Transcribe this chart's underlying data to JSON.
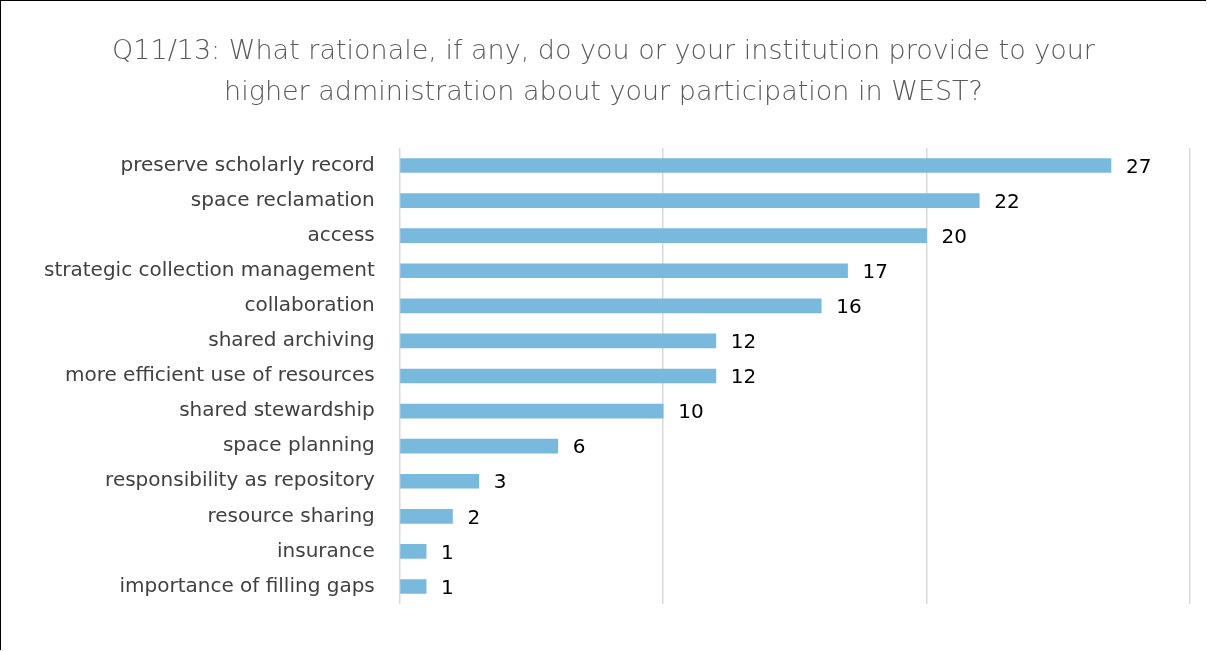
{
  "chart_data": {
    "type": "bar",
    "orientation": "horizontal",
    "title": "Q11/13: What rationale, if any, do you or your institution provide to your higher administration about your participation in WEST?",
    "categories": [
      "preserve scholarly record",
      "space reclamation",
      "access",
      "strategic collection management",
      "collaboration",
      "shared archiving",
      "more efficient use of resources",
      "shared stewardship",
      "space planning",
      "responsibility as repository",
      "resource sharing",
      "insurance",
      "importance of filling gaps"
    ],
    "values": [
      27,
      22,
      20,
      17,
      16,
      12,
      12,
      10,
      6,
      3,
      2,
      1,
      1
    ],
    "color": "#7ab9de",
    "xlim": [
      0,
      30
    ],
    "xticks": [
      {
        "value": 0,
        "label": null
      },
      {
        "value": 10,
        "label": null
      },
      {
        "value": 20,
        "label": null
      },
      {
        "value": 30,
        "label": null
      }
    ],
    "tick_labels": "y",
    "grid": "x",
    "data_labels": true
  }
}
